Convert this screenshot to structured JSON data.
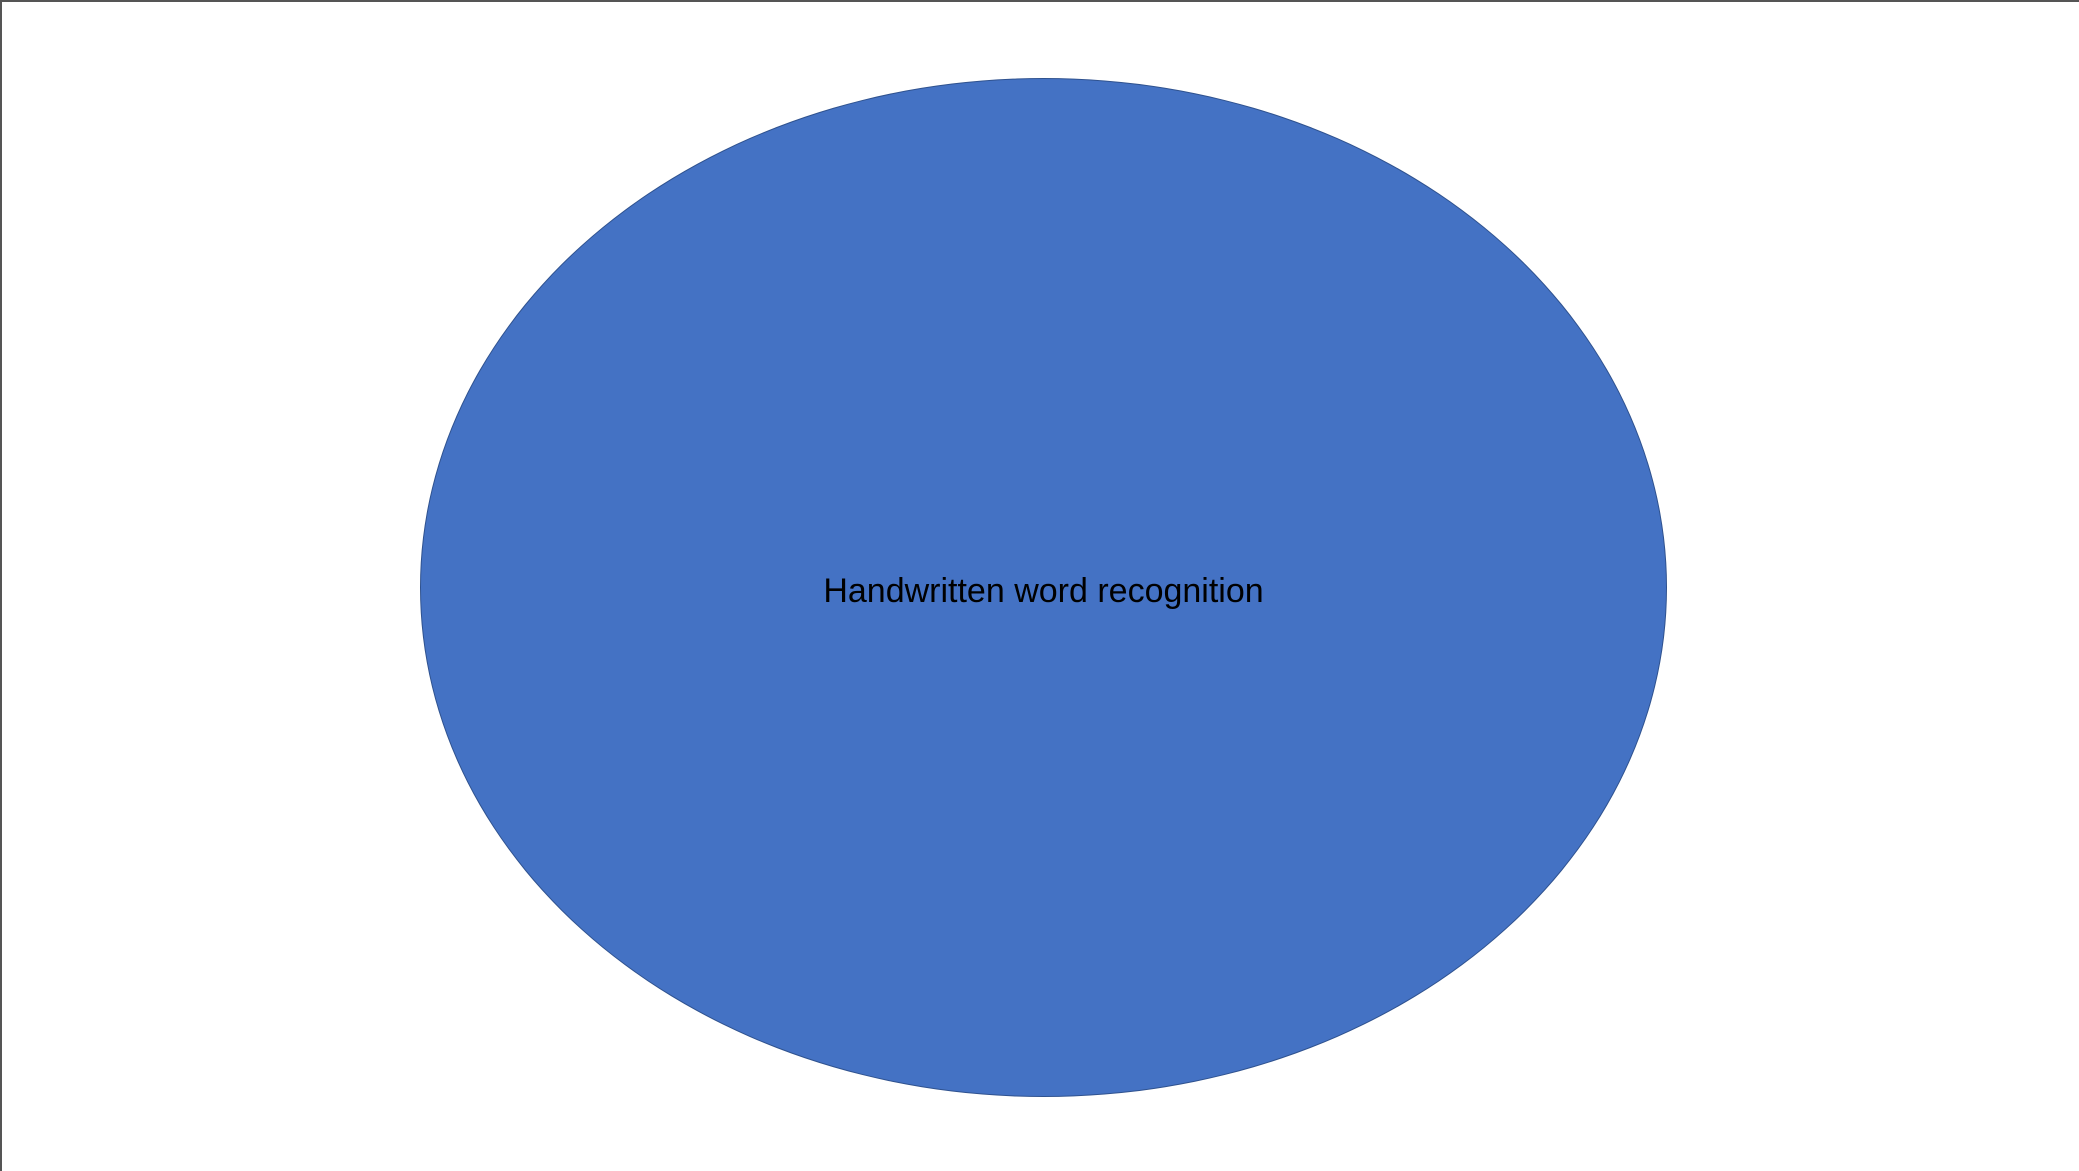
{
  "diagram": {
    "shape": {
      "type": "ellipse",
      "label": "Handwritten word recognition",
      "fill_color": "#4472c4",
      "border_color": "#2f528f"
    }
  }
}
